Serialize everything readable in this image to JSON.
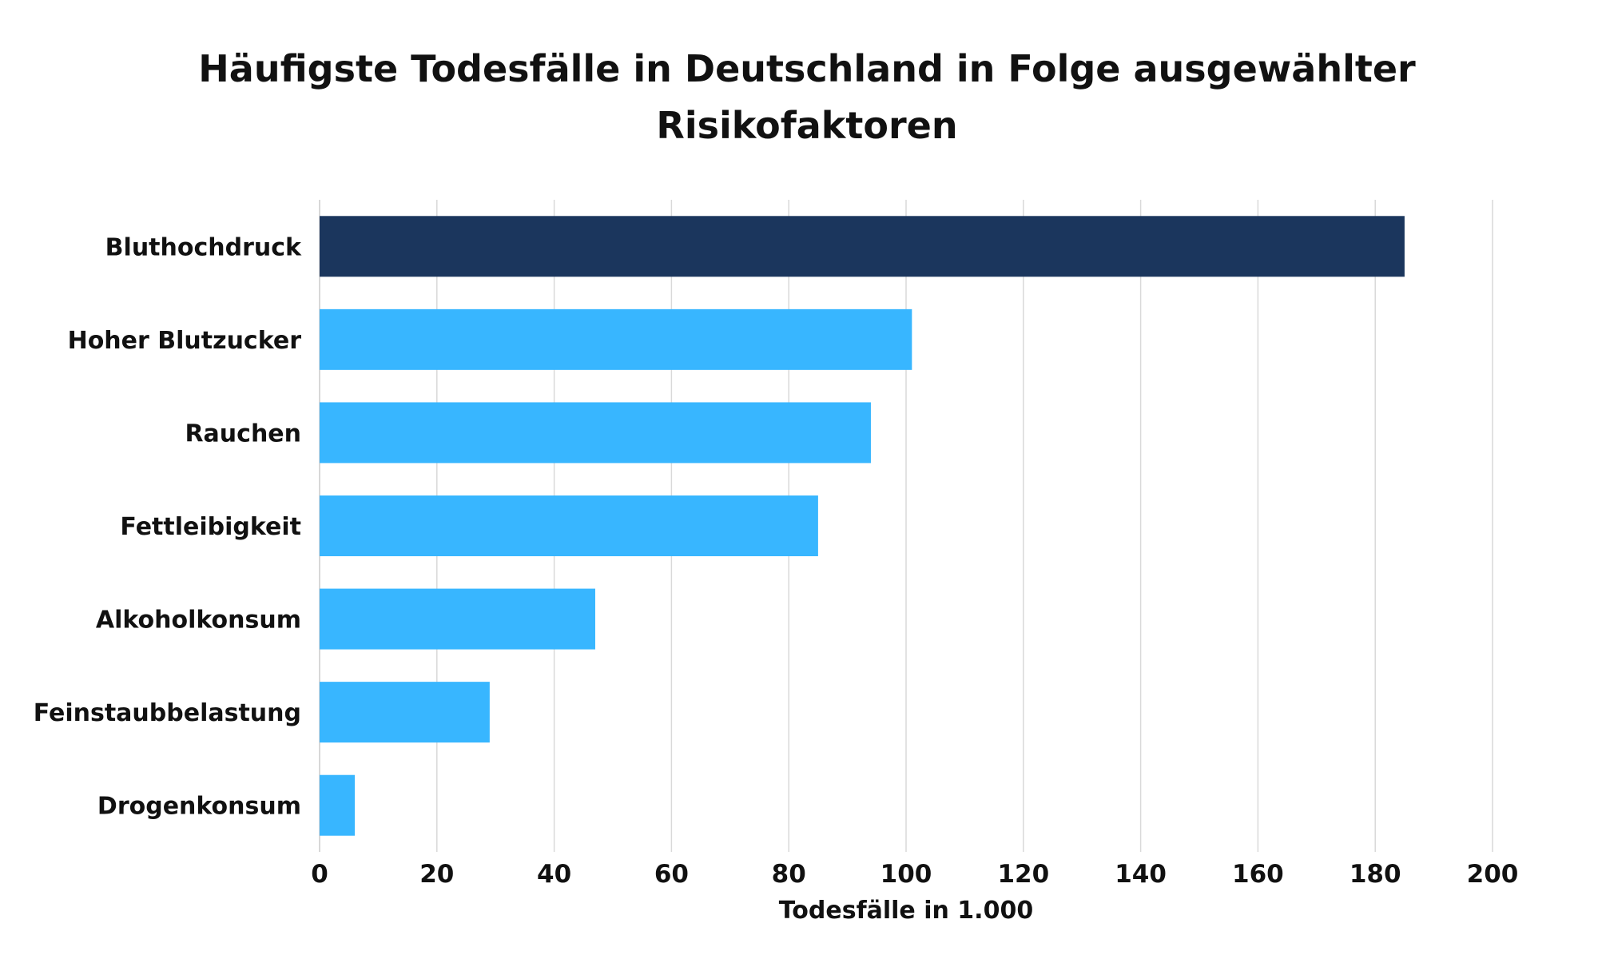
{
  "chart_data": {
    "type": "bar",
    "orientation": "horizontal",
    "title": "Häufigste Todesfälle in Deutschland in Folge ausgewählter Risikofaktoren",
    "title_lines": [
      "Häufigste Todesfälle in Deutschland in Folge ausgewählter",
      "Risikofaktoren"
    ],
    "categories": [
      "Bluthochdruck",
      "Hoher Blutzucker",
      "Rauchen",
      "Fettleibigkeit",
      "Alkoholkonsum",
      "Feinstaubbelastung",
      "Drogenkonsum"
    ],
    "values": [
      185,
      101,
      94,
      85,
      47,
      29,
      6
    ],
    "xlabel": "Todesfälle in 1.000",
    "ylabel": "",
    "xlim": [
      0,
      200
    ],
    "x_ticks": [
      0,
      20,
      40,
      60,
      80,
      100,
      120,
      140,
      160,
      180,
      200
    ],
    "grid": "vertical",
    "highlight_index": 0,
    "colors": {
      "highlight": "#1b365d",
      "bar": "#38b6ff",
      "grid": "#d9d9d9",
      "text": "#111111"
    }
  }
}
